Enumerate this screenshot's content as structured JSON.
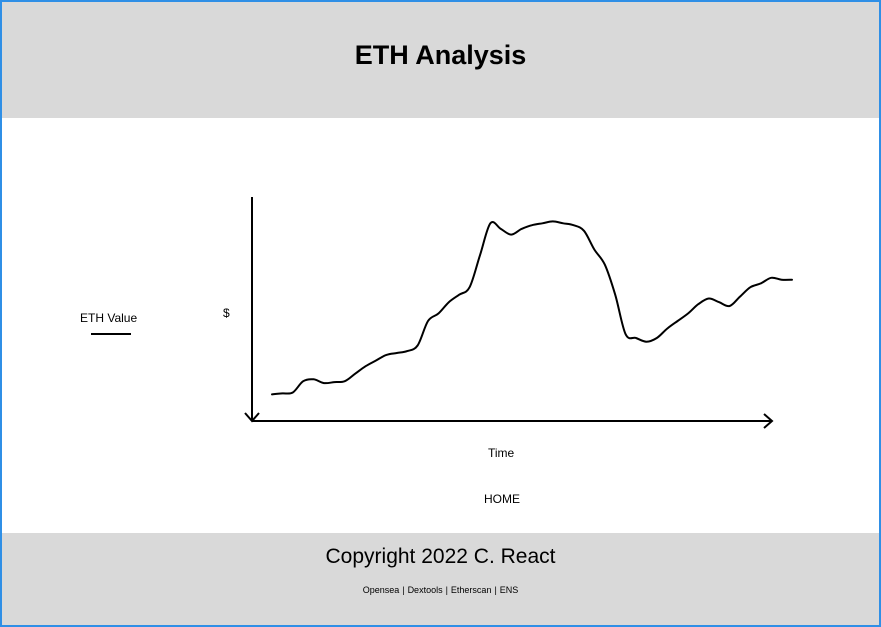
{
  "header": {
    "title": "ETH Analysis"
  },
  "legend": {
    "label": "ETH Value"
  },
  "chart_data": {
    "type": "line",
    "title": "",
    "xlabel": "Time",
    "ylabel": "$",
    "series": [
      {
        "name": "ETH Value",
        "x": [
          0,
          2,
          4,
          6,
          8,
          10,
          12,
          14,
          16,
          18,
          20,
          22,
          24,
          26,
          28,
          30,
          32,
          34,
          36,
          38,
          40,
          42,
          44,
          46,
          48,
          50,
          52,
          54,
          56,
          58,
          60,
          62,
          64,
          66,
          68,
          70,
          72,
          74,
          76,
          78,
          80,
          82,
          84,
          86,
          88,
          90,
          92,
          94,
          96,
          98,
          100
        ],
        "y": [
          3,
          3.5,
          4,
          10,
          11,
          9,
          9.5,
          10,
          14,
          18,
          21,
          24,
          25,
          26,
          29,
          42,
          46,
          52,
          56,
          60,
          77,
          94,
          91,
          88,
          91,
          93,
          94,
          95,
          94,
          93,
          90,
          80,
          72,
          56,
          35,
          33,
          31,
          33,
          38,
          42,
          46,
          51,
          54,
          52,
          50,
          55,
          60,
          62,
          65,
          64,
          64
        ],
        "color": "#000000"
      }
    ],
    "xlim": [
      0,
      100
    ],
    "ylim": [
      0,
      100
    ],
    "grid": false,
    "legend": "left"
  },
  "nav": {
    "home": "HOME"
  },
  "footer": {
    "copyright": "Copyright 2022 C. React",
    "links": [
      "Opensea",
      "Dextools",
      "Etherscan",
      "ENS"
    ],
    "separator": "|"
  }
}
